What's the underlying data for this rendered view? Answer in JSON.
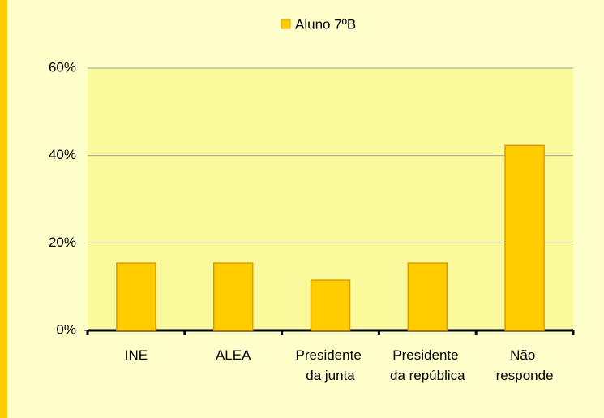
{
  "chart_data": {
    "type": "bar",
    "categories": [
      "INE",
      "ALEA",
      "Presidente da junta",
      "Presidente da república",
      "Não responde"
    ],
    "series": [
      {
        "name": "Aluno 7ºB",
        "color": "#ffcc00",
        "values": [
          15.4,
          15.4,
          11.5,
          15.4,
          42.3
        ]
      }
    ],
    "ylim": [
      0,
      60
    ],
    "yticks": [
      {
        "value": 0,
        "label": "0%"
      },
      {
        "value": 20,
        "label": "20%"
      },
      {
        "value": 40,
        "label": "40%"
      },
      {
        "value": 60,
        "label": "60%"
      }
    ],
    "grid": true,
    "legend": "top"
  }
}
